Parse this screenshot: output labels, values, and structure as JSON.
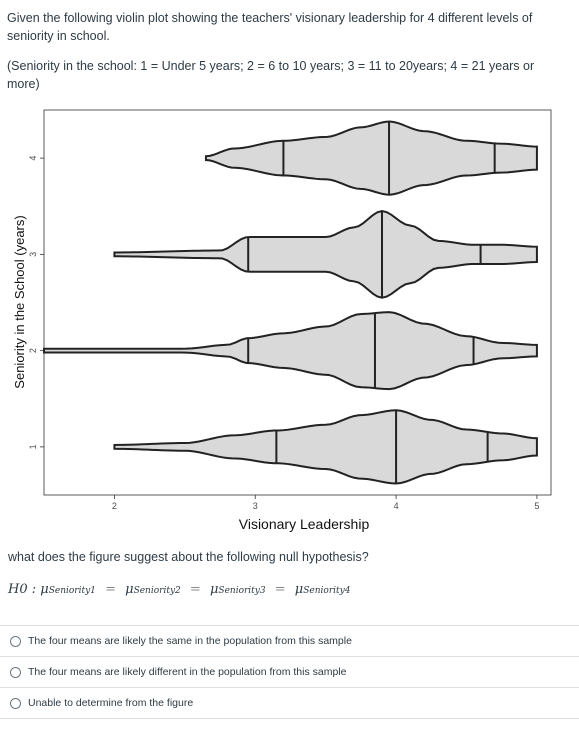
{
  "intro_text": "Given the following violin plot showing the teachers' visionary leadership for 4 different levels of seniority in school.",
  "note_text": "(Seniority in the school: 1 = Under 5 years;  2 = 6 to 10 years; 3 = 11 to 20years; 4 = 21 years or more)",
  "question_text": "what does the figure suggest about the following null hypothesis?",
  "hypothesis": {
    "lhs": "H0 :",
    "mu": "μ",
    "subs": [
      "Seniority1",
      "Seniority2",
      "Seniority3",
      "Seniority4"
    ],
    "eq": "="
  },
  "options": [
    "The four means are likely the same in the population from this sample",
    "The four means are likely different in the population from this sample",
    "Unable to determine from the figure"
  ],
  "chart_data": {
    "type": "violin",
    "xlabel": "Visionary Leadership",
    "ylabel": "Seniority in the School (years)",
    "xlim": [
      1.5,
      5.1
    ],
    "ylim": [
      0.5,
      4.5
    ],
    "xticks": [
      2,
      3,
      4,
      5
    ],
    "yticks": [
      1,
      2,
      3,
      4
    ],
    "grid": false,
    "fill_color": "#d9d9d9",
    "background": "#ffffff",
    "violins": [
      {
        "group": 1,
        "min": 2.0,
        "max": 5.0,
        "quantiles": [
          3.15,
          4.0,
          4.65
        ],
        "density": [
          [
            2.0,
            0.02
          ],
          [
            2.5,
            0.04
          ],
          [
            2.85,
            0.12
          ],
          [
            3.15,
            0.17
          ],
          [
            3.5,
            0.23
          ],
          [
            3.75,
            0.33
          ],
          [
            4.0,
            0.38
          ],
          [
            4.25,
            0.28
          ],
          [
            4.5,
            0.18
          ],
          [
            4.75,
            0.14
          ],
          [
            5.0,
            0.09
          ]
        ]
      },
      {
        "group": 2,
        "min": 1.5,
        "max": 5.0,
        "quantiles": [
          2.95,
          3.85,
          4.55
        ],
        "density": [
          [
            1.5,
            0.02
          ],
          [
            2.5,
            0.02
          ],
          [
            2.8,
            0.06
          ],
          [
            2.95,
            0.13
          ],
          [
            3.2,
            0.18
          ],
          [
            3.5,
            0.25
          ],
          [
            3.75,
            0.38
          ],
          [
            3.95,
            0.4
          ],
          [
            4.2,
            0.28
          ],
          [
            4.5,
            0.15
          ],
          [
            4.75,
            0.08
          ],
          [
            5.0,
            0.06
          ]
        ]
      },
      {
        "group": 3,
        "min": 2.0,
        "max": 5.0,
        "quantiles": [
          2.95,
          3.9,
          4.6
        ],
        "density": [
          [
            2.0,
            0.02
          ],
          [
            2.75,
            0.04
          ],
          [
            2.95,
            0.18
          ],
          [
            3.2,
            0.18
          ],
          [
            3.5,
            0.18
          ],
          [
            3.7,
            0.28
          ],
          [
            3.9,
            0.45
          ],
          [
            4.1,
            0.3
          ],
          [
            4.3,
            0.14
          ],
          [
            4.55,
            0.1
          ],
          [
            4.75,
            0.1
          ],
          [
            5.0,
            0.08
          ]
        ]
      },
      {
        "group": 4,
        "min": 2.65,
        "max": 5.0,
        "quantiles": [
          3.2,
          3.95,
          4.7
        ],
        "density": [
          [
            2.65,
            0.02
          ],
          [
            2.85,
            0.1
          ],
          [
            3.2,
            0.18
          ],
          [
            3.5,
            0.22
          ],
          [
            3.75,
            0.32
          ],
          [
            3.95,
            0.38
          ],
          [
            4.2,
            0.28
          ],
          [
            4.5,
            0.18
          ],
          [
            4.75,
            0.15
          ],
          [
            5.0,
            0.12
          ]
        ]
      }
    ]
  }
}
